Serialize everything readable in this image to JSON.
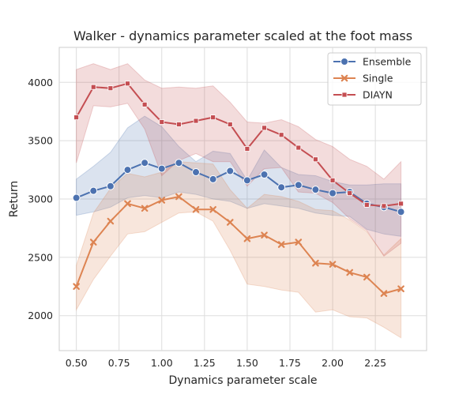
{
  "chart_data": {
    "type": "line",
    "title": "Walker - dynamics parameter scaled at the foot mass",
    "xlabel": "Dynamics parameter scale",
    "ylabel": "Return",
    "xlim": [
      0.4,
      2.55
    ],
    "ylim": [
      1700,
      4300
    ],
    "xticks": [
      0.5,
      0.75,
      1.0,
      1.25,
      1.5,
      1.75,
      2.0,
      2.25
    ],
    "xtick_labels": [
      "0.50",
      "0.75",
      "1.00",
      "1.25",
      "1.50",
      "1.75",
      "2.00",
      "2.25"
    ],
    "yticks": [
      2000,
      2500,
      3000,
      3500,
      4000
    ],
    "ytick_labels": [
      "2000",
      "2500",
      "3000",
      "3500",
      "4000"
    ],
    "grid": true,
    "legend_position": "top-right",
    "x": [
      0.5,
      0.6,
      0.7,
      0.8,
      0.9,
      1.0,
      1.1,
      1.2,
      1.3,
      1.4,
      1.5,
      1.6,
      1.7,
      1.8,
      1.9,
      2.0,
      2.1,
      2.2,
      2.3,
      2.4
    ],
    "series": [
      {
        "name": "Ensemble",
        "color": "#4c72b0",
        "marker": "circle",
        "values": [
          3010,
          3070,
          3110,
          3250,
          3310,
          3260,
          3310,
          3230,
          3170,
          3240,
          3160,
          3210,
          3100,
          3120,
          3080,
          3050,
          3060,
          2960,
          2930,
          2890
        ],
        "lower": [
          2860,
          2890,
          2930,
          3010,
          3030,
          3010,
          3060,
          3040,
          3000,
          2980,
          2920,
          2960,
          2940,
          2920,
          2880,
          2860,
          2850,
          2740,
          2700,
          2680
        ],
        "upper": [
          3170,
          3280,
          3400,
          3610,
          3710,
          3620,
          3450,
          3320,
          3410,
          3390,
          3160,
          3420,
          3270,
          3210,
          3200,
          3150,
          3120,
          3120,
          3130,
          3130
        ]
      },
      {
        "name": "Single",
        "color": "#dd8452",
        "marker": "x",
        "values": [
          2250,
          2630,
          2810,
          2960,
          2920,
          2990,
          3020,
          2910,
          2910,
          2800,
          2660,
          2690,
          2610,
          2630,
          2450,
          2440,
          2370,
          2330,
          2190,
          2230
        ],
        "lower": [
          2050,
          2310,
          2510,
          2700,
          2720,
          2800,
          2880,
          2890,
          2810,
          2560,
          2270,
          2250,
          2220,
          2200,
          2030,
          2050,
          1990,
          1980,
          1900,
          1810
        ],
        "upper": [
          2430,
          2880,
          3090,
          3220,
          3190,
          3230,
          3320,
          3310,
          3300,
          3080,
          2920,
          3040,
          3020,
          2980,
          2910,
          2900,
          2820,
          2720,
          2520,
          2660
        ]
      },
      {
        "name": "DIAYN",
        "color": "#c44e52",
        "marker": "square",
        "values": [
          3700,
          3960,
          3950,
          3990,
          3810,
          3660,
          3640,
          3670,
          3700,
          3640,
          3430,
          3610,
          3550,
          3440,
          3340,
          3160,
          3050,
          2950,
          2940,
          2960
        ],
        "lower": [
          3310,
          3800,
          3790,
          3820,
          3600,
          3200,
          3330,
          3390,
          3320,
          3320,
          3110,
          3260,
          3270,
          3060,
          3050,
          2970,
          2830,
          2730,
          2510,
          2620
        ],
        "upper": [
          4110,
          4160,
          4110,
          4160,
          4020,
          3950,
          3960,
          3950,
          3970,
          3830,
          3660,
          3650,
          3680,
          3620,
          3510,
          3450,
          3340,
          3280,
          3170,
          3320
        ]
      }
    ]
  }
}
